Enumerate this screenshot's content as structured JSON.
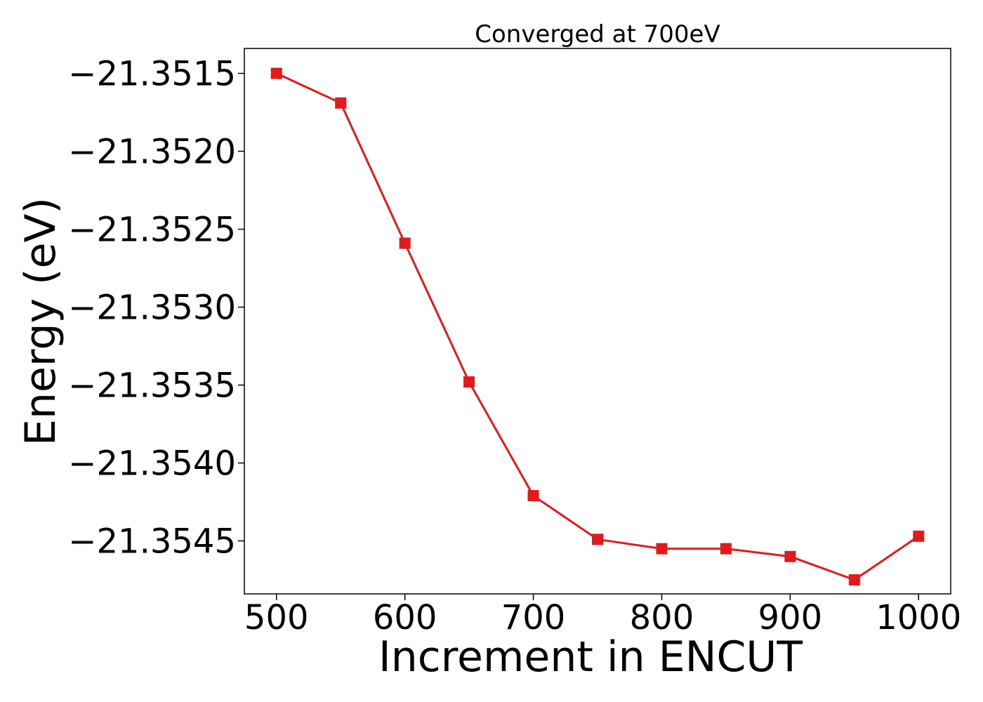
{
  "chart_data": {
    "type": "line",
    "title": "Converged at 700eV",
    "xlabel": "Increment in ENCUT",
    "ylabel": "Energy (eV)",
    "x": [
      500,
      550,
      600,
      650,
      700,
      750,
      800,
      850,
      900,
      950,
      1000
    ],
    "series": [
      {
        "values": [
          -21.3515,
          -21.35169,
          -21.35259,
          -21.35348,
          -21.35421,
          -21.35449,
          -21.35455,
          -21.35455,
          -21.3546,
          -21.35475,
          -21.35447
        ],
        "color": "#e31a1c",
        "marker": "square"
      }
    ],
    "xlim": [
      475,
      1025
    ],
    "ylim": [
      -21.35484,
      -21.35134
    ],
    "xticks": [
      500,
      600,
      700,
      800,
      900,
      1000
    ],
    "yticks": [
      -21.3515,
      -21.352,
      -21.3525,
      -21.353,
      -21.3535,
      -21.354,
      -21.3545
    ],
    "xtick_labels": [
      "500",
      "600",
      "700",
      "800",
      "900",
      "1000"
    ],
    "ytick_labels": [
      "−21.3515",
      "−21.3520",
      "−21.3525",
      "−21.3530",
      "−21.3535",
      "−21.3540",
      "−21.3545"
    ],
    "grid": false,
    "legend": "none"
  }
}
